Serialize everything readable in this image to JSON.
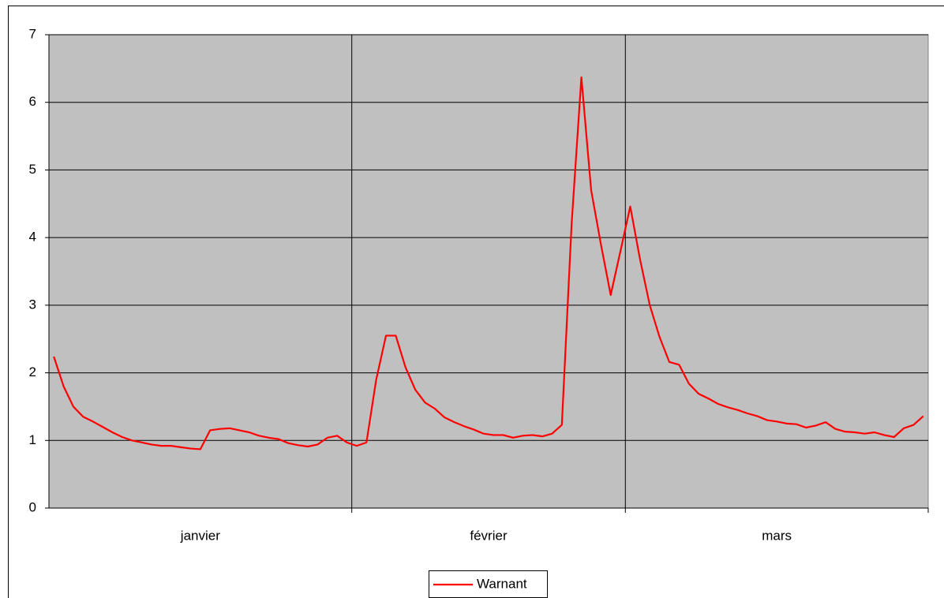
{
  "chart_data": {
    "type": "line",
    "categories": [
      "janvier",
      "février",
      "mars"
    ],
    "series": [
      {
        "name": "Warnant",
        "color": "#ff0000",
        "values": [
          [
            2.24,
            1.8,
            1.5,
            1.35,
            1.28,
            1.2,
            1.12,
            1.05,
            1.0,
            0.97,
            0.94,
            0.92,
            0.92,
            0.9,
            0.88,
            0.87,
            1.15,
            1.17,
            1.18,
            1.15,
            1.12,
            1.07,
            1.04,
            1.02,
            0.96,
            0.93,
            0.91,
            0.94,
            1.04,
            1.07,
            0.97
          ],
          [
            0.92,
            0.97,
            1.9,
            2.55,
            2.55,
            2.08,
            1.75,
            1.56,
            1.47,
            1.34,
            1.27,
            1.21,
            1.16,
            1.1,
            1.08,
            1.08,
            1.04,
            1.07,
            1.08,
            1.06,
            1.1,
            1.23,
            4.2,
            6.37,
            4.7,
            3.9,
            3.15,
            3.8
          ],
          [
            4.46,
            3.68,
            3.0,
            2.53,
            2.16,
            2.12,
            1.84,
            1.69,
            1.62,
            1.54,
            1.49,
            1.45,
            1.4,
            1.36,
            1.3,
            1.28,
            1.25,
            1.24,
            1.19,
            1.22,
            1.27,
            1.17,
            1.13,
            1.12,
            1.1,
            1.12,
            1.08,
            1.05,
            1.18,
            1.23,
            1.36
          ]
        ]
      }
    ],
    "ylim": [
      0,
      7
    ],
    "yticks": [
      0,
      1,
      2,
      3,
      4,
      5,
      6,
      7
    ],
    "grid": true,
    "legend": "bottom",
    "plot_background": "#c0c0c0"
  }
}
